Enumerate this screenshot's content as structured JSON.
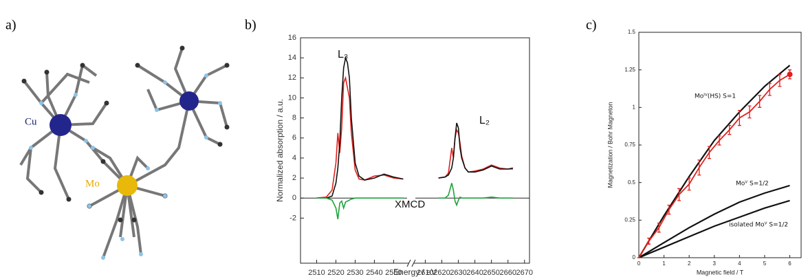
{
  "panel_labels": [
    "a)",
    "b)",
    "c)"
  ],
  "molecule": {
    "atom_labels": [
      "Cu",
      "Mo"
    ]
  },
  "chart_data": [
    {
      "type": "line",
      "y_label": "Normalized absorption / a.u.",
      "x_label": "Energy / eV",
      "annotations": [
        "L₃",
        "L₂",
        "XMCD"
      ],
      "ylim": [
        -6.5,
        16
      ],
      "yticks": [
        -2,
        0,
        2,
        4,
        6,
        8,
        10,
        12,
        14,
        16
      ],
      "x_segments": [
        {
          "xlim": [
            2501.6,
            2557
          ],
          "xticks": [
            2510,
            2520,
            2530,
            2540,
            2550
          ],
          "x": [
            2510,
            2515,
            2518,
            2520,
            2521,
            2522,
            2523,
            2524,
            2525,
            2526,
            2527,
            2528,
            2530,
            2532,
            2535,
            2540,
            2545,
            2550,
            2555
          ],
          "series": [
            {
              "color": "#e0201c",
              "values": [
                0,
                0.1,
                0.8,
                3.5,
                6.5,
                4.5,
                7,
                11.5,
                12,
                11,
                10,
                6.5,
                2.8,
                1.9,
                1.8,
                2.2,
                2.3,
                2.0,
                1.9
              ]
            },
            {
              "color": "#111111",
              "values": [
                0,
                0,
                0.2,
                1.5,
                3,
                5.5,
                10,
                13,
                14,
                13.5,
                12,
                8,
                3.5,
                2.2,
                1.8,
                2.0,
                2.4,
                2.1,
                1.9
              ]
            },
            {
              "color": "#1ea23a",
              "values": [
                0,
                0,
                -0.2,
                -1,
                -2.1,
                -0.5,
                -0.3,
                -1,
                -0.4,
                -0.3,
                -0.2,
                -0.1,
                0,
                0,
                0,
                0,
                0,
                0,
                0
              ]
            }
          ]
        },
        {
          "xlim": [
            2604,
            2673
          ],
          "xticks": [
            2610,
            2620,
            2630,
            2640,
            2650,
            2660,
            2670
          ],
          "x": [
            2618,
            2622,
            2624,
            2626,
            2627,
            2628,
            2629,
            2630,
            2631,
            2632,
            2634,
            2636,
            2640,
            2645,
            2650,
            2655,
            2660,
            2663
          ],
          "series": [
            {
              "color": "#e0201c",
              "values": [
                2,
                2.1,
                2.5,
                5,
                4,
                6,
                6.8,
                6.5,
                5.5,
                4.2,
                3,
                2.6,
                2.7,
                2.9,
                3.3,
                3.0,
                2.9,
                2.9
              ]
            },
            {
              "color": "#111111",
              "values": [
                2,
                2.1,
                2.3,
                3,
                4,
                6,
                7.5,
                7,
                5,
                4,
                3,
                2.6,
                2.6,
                2.8,
                3.2,
                2.9,
                2.9,
                3
              ]
            },
            {
              "color": "#1ea23a",
              "values": [
                0,
                0,
                0.3,
                1.5,
                0.8,
                -0.3,
                -0.7,
                -0.2,
                0.1,
                0,
                0,
                0,
                0,
                0,
                0.1,
                0,
                0,
                0
              ]
            }
          ]
        }
      ]
    },
    {
      "type": "line",
      "y_label": "Magnetization / Bohr Magneton",
      "x_label": "Magnetic field / T",
      "annotations": [
        "Moᴵⱽ(HS)  S=1",
        "Moⱽ  S=1/2",
        "isolated Moⱽ  S=1/2"
      ],
      "xlim": [
        0,
        6.45
      ],
      "xticks": [
        0,
        1,
        2,
        3,
        4,
        5,
        6
      ],
      "ylim": [
        0,
        1.5
      ],
      "yticks": [
        0,
        0.25,
        0.5,
        0.75,
        1,
        1.25,
        1.5
      ],
      "series": [
        {
          "color": "#111111",
          "x": [
            0,
            1,
            2,
            3,
            4,
            5,
            6
          ],
          "values": [
            0,
            0.28,
            0.54,
            0.78,
            0.97,
            1.14,
            1.28
          ]
        },
        {
          "color": "#111111",
          "x": [
            0,
            1,
            2,
            3,
            4,
            5,
            6
          ],
          "values": [
            0,
            0.1,
            0.2,
            0.29,
            0.37,
            0.43,
            0.48
          ]
        },
        {
          "color": "#111111",
          "x": [
            0,
            1,
            2,
            3,
            4,
            5,
            6
          ],
          "values": [
            0,
            0.07,
            0.14,
            0.21,
            0.27,
            0.33,
            0.38
          ]
        },
        {
          "color": "#e0201c",
          "x": [
            0,
            0.4,
            0.8,
            1.2,
            1.6,
            2,
            2.4,
            2.8,
            3.2,
            3.6,
            4,
            4.4,
            4.8,
            5.2,
            5.6,
            6
          ],
          "values": [
            0,
            0.11,
            0.2,
            0.32,
            0.42,
            0.49,
            0.6,
            0.7,
            0.78,
            0.85,
            0.93,
            0.97,
            1.04,
            1.12,
            1.18,
            1.22
          ],
          "errors": [
            0,
            0.02,
            0.03,
            0.03,
            0.04,
            0.04,
            0.05,
            0.04,
            0.03,
            0.03,
            0.05,
            0.04,
            0.04,
            0.04,
            0.04,
            0.03
          ]
        }
      ]
    }
  ]
}
